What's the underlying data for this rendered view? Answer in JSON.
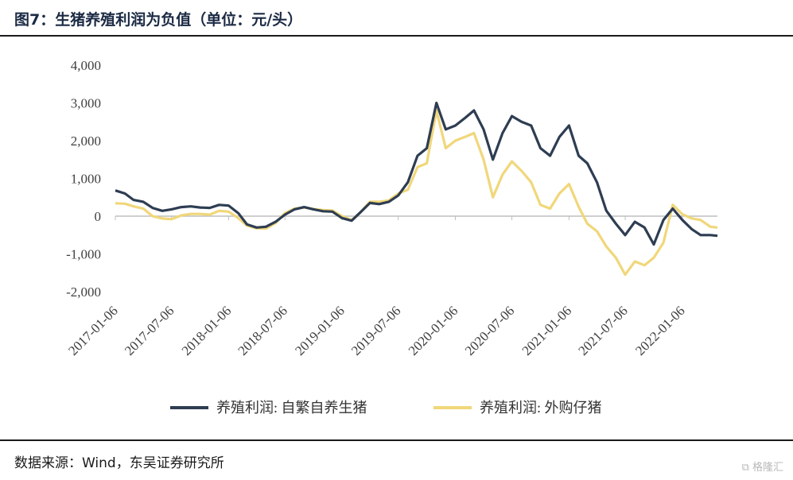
{
  "figure": {
    "title": "图7：生猪养殖利润为负值（单位：元/头）",
    "source": "数据来源：Wind，东吴证券研究所",
    "watermark": "格隆汇"
  },
  "colors": {
    "series1": "#2e3d52",
    "series2": "#f0d77a",
    "axis": "#bfbfbf",
    "text": "#404040"
  },
  "chart_data": {
    "type": "line",
    "title": "",
    "xlabel": "",
    "ylabel": "",
    "ylim": [
      -2000,
      4000
    ],
    "yticks": [
      -2000,
      -1000,
      0,
      1000,
      2000,
      3000,
      4000
    ],
    "ytick_labels": [
      "-2,000",
      "-1,000",
      "0",
      "1,000",
      "2,000",
      "3,000",
      "4,000"
    ],
    "xlim": [
      "2017-01-06",
      "2022-04-29"
    ],
    "xticks": [
      "2017-01-06",
      "2017-07-06",
      "2018-01-06",
      "2018-07-06",
      "2019-01-06",
      "2019-07-06",
      "2020-01-06",
      "2020-07-06",
      "2021-01-06",
      "2021-07-06",
      "2022-01-06"
    ],
    "grid": false,
    "legend": "bottom",
    "series": [
      {
        "name": "养殖利润: 自繁自养生猪",
        "points": [
          [
            "2017-01-06",
            680
          ],
          [
            "2017-02-06",
            600
          ],
          [
            "2017-03-06",
            430
          ],
          [
            "2017-04-06",
            380
          ],
          [
            "2017-05-06",
            220
          ],
          [
            "2017-06-06",
            140
          ],
          [
            "2017-07-06",
            180
          ],
          [
            "2017-08-06",
            240
          ],
          [
            "2017-09-06",
            260
          ],
          [
            "2017-10-06",
            230
          ],
          [
            "2017-11-06",
            220
          ],
          [
            "2017-12-06",
            300
          ],
          [
            "2018-01-06",
            280
          ],
          [
            "2018-02-06",
            80
          ],
          [
            "2018-03-06",
            -220
          ],
          [
            "2018-04-06",
            -300
          ],
          [
            "2018-05-06",
            -280
          ],
          [
            "2018-06-06",
            -150
          ],
          [
            "2018-07-06",
            40
          ],
          [
            "2018-08-06",
            180
          ],
          [
            "2018-09-06",
            240
          ],
          [
            "2018-10-06",
            180
          ],
          [
            "2018-11-06",
            130
          ],
          [
            "2018-12-06",
            120
          ],
          [
            "2019-01-06",
            -50
          ],
          [
            "2019-02-06",
            -120
          ],
          [
            "2019-03-06",
            100
          ],
          [
            "2019-04-06",
            350
          ],
          [
            "2019-05-06",
            320
          ],
          [
            "2019-06-06",
            380
          ],
          [
            "2019-07-06",
            550
          ],
          [
            "2019-08-06",
            900
          ],
          [
            "2019-09-06",
            1600
          ],
          [
            "2019-10-06",
            1800
          ],
          [
            "2019-11-06",
            3000
          ],
          [
            "2019-12-06",
            2300
          ],
          [
            "2020-01-06",
            2400
          ],
          [
            "2020-02-06",
            2600
          ],
          [
            "2020-03-06",
            2800
          ],
          [
            "2020-04-06",
            2300
          ],
          [
            "2020-05-06",
            1500
          ],
          [
            "2020-06-06",
            2200
          ],
          [
            "2020-07-06",
            2650
          ],
          [
            "2020-08-06",
            2500
          ],
          [
            "2020-09-06",
            2400
          ],
          [
            "2020-10-06",
            1800
          ],
          [
            "2020-11-06",
            1600
          ],
          [
            "2020-12-06",
            2100
          ],
          [
            "2021-01-06",
            2400
          ],
          [
            "2021-02-06",
            1600
          ],
          [
            "2021-03-06",
            1400
          ],
          [
            "2021-04-06",
            900
          ],
          [
            "2021-05-06",
            150
          ],
          [
            "2021-06-06",
            -200
          ],
          [
            "2021-07-06",
            -500
          ],
          [
            "2021-08-06",
            -150
          ],
          [
            "2021-09-06",
            -300
          ],
          [
            "2021-10-06",
            -750
          ],
          [
            "2021-11-06",
            -100
          ],
          [
            "2021-12-06",
            200
          ],
          [
            "2022-01-06",
            -100
          ],
          [
            "2022-02-06",
            -350
          ],
          [
            "2022-03-06",
            -500
          ],
          [
            "2022-04-06",
            -500
          ],
          [
            "2022-04-29",
            -520
          ]
        ]
      },
      {
        "name": "养殖利润: 外购仔猪",
        "points": [
          [
            "2017-01-06",
            340
          ],
          [
            "2017-02-06",
            330
          ],
          [
            "2017-03-06",
            260
          ],
          [
            "2017-04-06",
            200
          ],
          [
            "2017-05-06",
            0
          ],
          [
            "2017-06-06",
            -60
          ],
          [
            "2017-07-06",
            -80
          ],
          [
            "2017-08-06",
            20
          ],
          [
            "2017-09-06",
            60
          ],
          [
            "2017-10-06",
            60
          ],
          [
            "2017-11-06",
            40
          ],
          [
            "2017-12-06",
            140
          ],
          [
            "2018-01-06",
            120
          ],
          [
            "2018-02-06",
            -50
          ],
          [
            "2018-03-06",
            -250
          ],
          [
            "2018-04-06",
            -320
          ],
          [
            "2018-05-06",
            -330
          ],
          [
            "2018-06-06",
            -180
          ],
          [
            "2018-07-06",
            80
          ],
          [
            "2018-08-06",
            200
          ],
          [
            "2018-09-06",
            230
          ],
          [
            "2018-10-06",
            190
          ],
          [
            "2018-11-06",
            160
          ],
          [
            "2018-12-06",
            150
          ],
          [
            "2019-01-06",
            0
          ],
          [
            "2019-02-06",
            -100
          ],
          [
            "2019-03-06",
            100
          ],
          [
            "2019-04-06",
            380
          ],
          [
            "2019-05-06",
            380
          ],
          [
            "2019-06-06",
            420
          ],
          [
            "2019-07-06",
            600
          ],
          [
            "2019-08-06",
            700
          ],
          [
            "2019-09-06",
            1300
          ],
          [
            "2019-10-06",
            1400
          ],
          [
            "2019-11-06",
            2800
          ],
          [
            "2019-12-06",
            1800
          ],
          [
            "2020-01-06",
            2000
          ],
          [
            "2020-02-06",
            2100
          ],
          [
            "2020-03-06",
            2200
          ],
          [
            "2020-04-06",
            1500
          ],
          [
            "2020-05-06",
            500
          ],
          [
            "2020-06-06",
            1100
          ],
          [
            "2020-07-06",
            1450
          ],
          [
            "2020-08-06",
            1200
          ],
          [
            "2020-09-06",
            900
          ],
          [
            "2020-10-06",
            300
          ],
          [
            "2020-11-06",
            200
          ],
          [
            "2020-12-06",
            600
          ],
          [
            "2021-01-06",
            850
          ],
          [
            "2021-02-06",
            250
          ],
          [
            "2021-03-06",
            -200
          ],
          [
            "2021-04-06",
            -400
          ],
          [
            "2021-05-06",
            -800
          ],
          [
            "2021-06-06",
            -1100
          ],
          [
            "2021-07-06",
            -1550
          ],
          [
            "2021-08-06",
            -1200
          ],
          [
            "2021-09-06",
            -1300
          ],
          [
            "2021-10-06",
            -1100
          ],
          [
            "2021-11-06",
            -700
          ],
          [
            "2021-12-06",
            300
          ],
          [
            "2022-01-06",
            50
          ],
          [
            "2022-02-06",
            -60
          ],
          [
            "2022-03-06",
            -100
          ],
          [
            "2022-04-06",
            -280
          ],
          [
            "2022-04-29",
            -300
          ]
        ]
      }
    ]
  }
}
